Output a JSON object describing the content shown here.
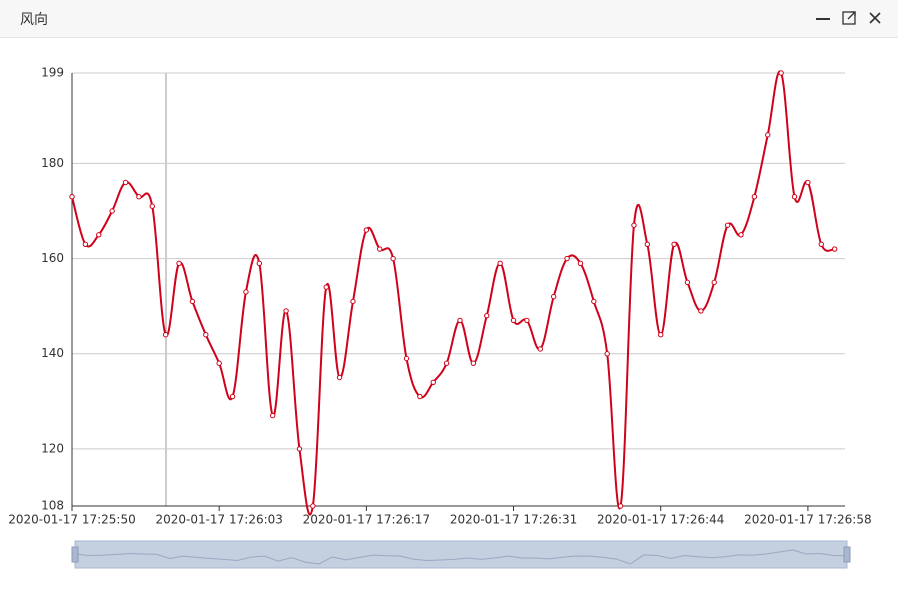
{
  "window": {
    "title": "风向"
  },
  "chart_data": {
    "type": "line",
    "smooth": true,
    "color": "#d0021b",
    "categories": [
      "2020-01-17 17:25:50",
      null,
      null,
      null,
      null,
      null,
      null,
      null,
      null,
      null,
      null,
      "2020-01-17 17:26:03",
      null,
      null,
      null,
      null,
      null,
      null,
      null,
      null,
      null,
      null,
      "2020-01-17 17:26:17",
      null,
      null,
      null,
      null,
      null,
      null,
      null,
      null,
      null,
      null,
      "2020-01-17 17:26:31",
      null,
      null,
      null,
      null,
      null,
      null,
      null,
      null,
      null,
      null,
      "2020-01-17 17:26:44",
      null,
      null,
      null,
      null,
      null,
      null,
      null,
      null,
      null,
      null,
      "2020-01-17 17:26:58",
      null,
      null
    ],
    "values": [
      173,
      163,
      165,
      170,
      176,
      173,
      171,
      144,
      159,
      151,
      144,
      138,
      131,
      153,
      159,
      127,
      149,
      120,
      108,
      154,
      135,
      151,
      166,
      162,
      160,
      139,
      131,
      134,
      138,
      147,
      138,
      148,
      159,
      147,
      147,
      141,
      152,
      160,
      159,
      151,
      140,
      108,
      167,
      163,
      144,
      163,
      155,
      149,
      155,
      167,
      165,
      173,
      186,
      199,
      173,
      176,
      163,
      162
    ],
    "ylim": [
      108,
      199
    ],
    "yticks": [
      108,
      120,
      140,
      160,
      180,
      199
    ],
    "grid": true
  }
}
